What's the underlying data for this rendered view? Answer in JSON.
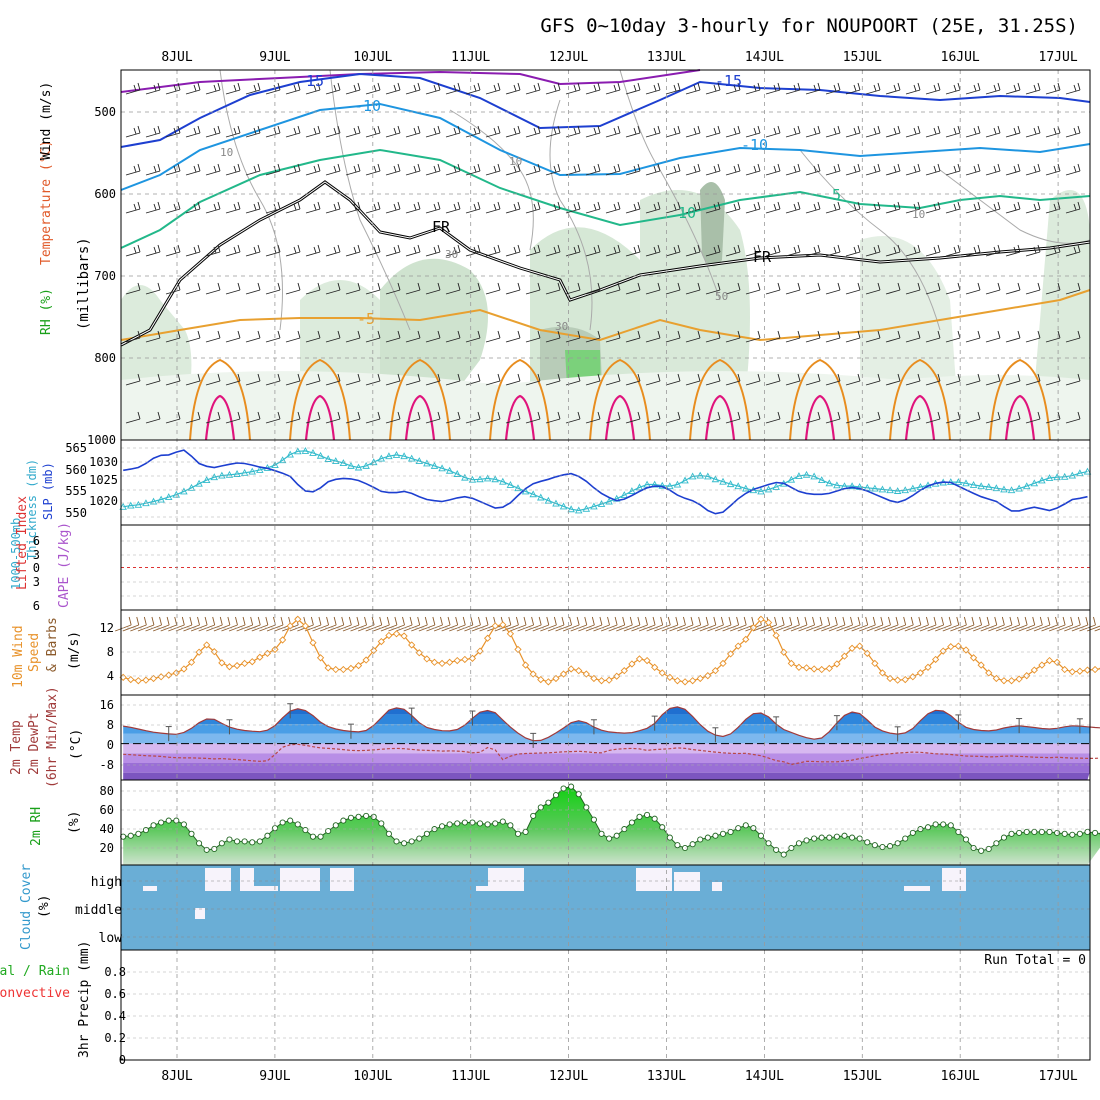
{
  "chart_data": {
    "type": "meteogram",
    "title": "GFS 0~10day 3-hourly for NOUPOORT (25E, 31.25S)",
    "days": [
      "8JUL",
      "9JUL",
      "10JUL",
      "11JUL",
      "12JUL",
      "13JUL",
      "14JUL",
      "15JUL",
      "16JUL",
      "17JUL"
    ],
    "time_range_days": [
      -0.55,
      9.3
    ],
    "colors": {
      "rh_fill": "#7bd17b",
      "temp_contour": "#1d3fd0",
      "freezing": "#000000",
      "thickness": "#33bbcc",
      "slp": "#1d3fd0",
      "wind10m": "#e8922a",
      "barb": "#8b5a2b",
      "li": "#dd3333",
      "cape": "#aa55cc",
      "rh2m": "#33bb33",
      "cloud": "#6aaed6",
      "precip_total": "#22aa22",
      "precip_conv": "#ee3333"
    },
    "panels": {
      "upper_air": {
        "ylabel_rh": "RH (%)",
        "ylabel_temp": "Temperature (°C)",
        "ylabel_wind": "Wind (m/s)",
        "ylabel_p": "(millibars)",
        "ylim": [
          450,
          1000
        ],
        "yticks": [
          "500",
          "600",
          "700",
          "800",
          "1000"
        ],
        "contour_labels": [
          "-15",
          "-15",
          "-10",
          "-10",
          "-5",
          "5",
          "10",
          "FR",
          "FR",
          "10",
          "10",
          "10",
          "30",
          "30",
          "50"
        ]
      },
      "thickness_slp": {
        "ylabel1": "1000-500mb",
        "ylabel2": "Thickness (dm)",
        "ylabel3": "SLP (mb)",
        "yticks_left": [
          "565",
          "560",
          "555",
          "550"
        ],
        "yticks_right": [
          "1030",
          "1025",
          "1020"
        ],
        "thickness_dm": [
          550.5,
          550.8,
          551.0,
          551.4,
          551.8,
          552.3,
          552.9,
          553.5,
          554.3,
          555.2,
          556.2,
          557.1,
          557.8,
          558.2,
          558.4,
          558.6,
          558.9,
          559.2,
          559.6,
          560.1,
          560.8,
          562.0,
          563.4,
          564.2,
          564.3,
          563.8,
          563.1,
          562.3,
          561.8,
          561.3,
          560.6,
          560.2,
          560.6,
          561.5,
          562.4,
          563.0,
          563.3,
          563.0,
          562.4,
          561.8,
          561.2,
          560.6,
          560.0,
          559.4,
          558.6,
          557.7,
          557.2,
          557.3,
          557.5,
          557.3,
          556.7,
          555.9,
          555.1,
          554.3,
          553.6,
          552.8,
          552.0,
          551.3,
          550.6,
          549.9,
          549.6,
          550.0,
          550.6,
          551.2,
          551.8,
          552.5,
          553.4,
          554.4,
          555.3,
          556.0,
          556.0,
          555.7,
          555.6,
          556.0,
          557.0,
          558.0,
          558.2,
          558.0,
          557.3,
          556.7,
          556.1,
          555.6,
          555.0,
          554.6,
          554.3,
          554.8,
          555.4,
          556.2,
          557.2,
          558.1,
          558.4,
          558.0,
          557.1,
          556.3,
          555.8,
          555.6,
          555.6,
          555.4,
          555.2,
          555.0,
          554.8,
          554.6,
          554.4,
          554.6,
          555.0,
          555.4,
          555.8,
          556.2,
          556.5,
          556.6,
          556.6,
          556.3,
          555.9,
          555.6,
          555.4,
          555.1,
          554.8,
          554.6,
          555.0,
          555.6,
          556.3,
          557.0,
          557.6,
          557.8,
          557.9,
          558.2,
          558.8,
          559.2
        ],
        "slp_mb": [
          1028.5,
          1028.8,
          1029.2,
          1030.2,
          1031.5,
          1032.2,
          1032.3,
          1033.0,
          1033.5,
          1032.0,
          1030.2,
          1029.5,
          1029.2,
          1029.6,
          1030.0,
          1030.3,
          1030.2,
          1029.8,
          1029.3,
          1029.0,
          1028.4,
          1027.8,
          1027.0,
          1025.0,
          1023.4,
          1023.2,
          1024.2,
          1025.7,
          1026.3,
          1026.5,
          1026.4,
          1026.0,
          1025.2,
          1024.3,
          1023.3,
          1023.0,
          1023.0,
          1023.3,
          1022.8,
          1022.0,
          1021.3,
          1021.0,
          1020.8,
          1021.2,
          1021.7,
          1022.0,
          1021.6,
          1020.8,
          1020.0,
          1019.2,
          1019.4,
          1020.5,
          1022.3,
          1024.0,
          1025.2,
          1025.8,
          1026.3,
          1026.9,
          1027.4,
          1027.7,
          1027.0,
          1025.8,
          1024.2,
          1022.8,
          1021.8,
          1021.0,
          1021.4,
          1022.3,
          1023.3,
          1024.2,
          1024.6,
          1024.5,
          1023.6,
          1022.4,
          1021.6,
          1021.0,
          1020.0,
          1018.6,
          1017.8,
          1018.2,
          1019.8,
          1021.5,
          1022.8,
          1023.8,
          1024.4,
          1025.0,
          1025.5,
          1025.3,
          1024.3,
          1023.3,
          1022.8,
          1022.6,
          1022.6,
          1022.8,
          1023.4,
          1024.0,
          1024.3,
          1024.0,
          1023.4,
          1022.6,
          1021.8,
          1021.0,
          1020.6,
          1021.2,
          1022.3,
          1023.6,
          1024.6,
          1025.3,
          1025.6,
          1025.5,
          1024.6,
          1023.7,
          1022.8,
          1022.0,
          1021.4,
          1020.8,
          1019.6,
          1018.5,
          1018.5,
          1019.0,
          1019.4,
          1019.0,
          1018.6,
          1019.2,
          1020.2,
          1021.3,
          1021.6,
          1022.0
        ]
      },
      "stability": {
        "ylabel1": "Lifted Index",
        "ylabel2": "CAPE (J/kg)",
        "yticks": [
          "6",
          "3",
          "0",
          "3",
          "6"
        ]
      },
      "wind10m": {
        "ylabel1": "10m Wind",
        "ylabel2": "Speed",
        "ylabel3": "& Barbs",
        "ylabel_units": "(m/s)",
        "yticks": [
          "12",
          "8",
          "4"
        ],
        "speed_ms": [
          2.8,
          2.4,
          2.2,
          2.3,
          2.6,
          2.9,
          3.2,
          3.6,
          4.3,
          5.5,
          7.3,
          8.6,
          7.4,
          5.4,
          4.7,
          4.9,
          5.3,
          5.6,
          6.4,
          7.1,
          7.8,
          9.5,
          12.0,
          13.2,
          12.0,
          9.0,
          6.3,
          4.5,
          4.2,
          4.2,
          4.4,
          4.9,
          5.9,
          7.6,
          9.2,
          10.3,
          10.6,
          10.2,
          8.6,
          7.2,
          6.1,
          5.5,
          5.3,
          5.5,
          5.8,
          6.0,
          6.2,
          7.5,
          9.8,
          12.0,
          12.2,
          10.6,
          7.8,
          5.0,
          3.4,
          2.4,
          2.0,
          2.6,
          3.4,
          4.3,
          4.0,
          3.4,
          2.6,
          2.2,
          2.3,
          3.0,
          4.0,
          5.2,
          6.1,
          5.8,
          4.6,
          3.6,
          2.8,
          2.2,
          2.0,
          2.2,
          2.6,
          3.1,
          4.0,
          5.3,
          7.0,
          8.4,
          9.6,
          11.7,
          13.2,
          12.6,
          10.3,
          7.3,
          5.3,
          4.6,
          4.5,
          4.3,
          4.2,
          4.4,
          5.2,
          6.6,
          8.0,
          8.4,
          7.1,
          5.3,
          3.6,
          2.6,
          2.3,
          2.4,
          2.9,
          3.6,
          4.6,
          6.0,
          7.5,
          8.3,
          8.4,
          7.7,
          6.3,
          5.0,
          3.6,
          2.6,
          2.2,
          2.2,
          2.5,
          3.1,
          4.1,
          5.0,
          5.8,
          5.5,
          4.2,
          3.8,
          3.9,
          4.1,
          4.2,
          4.4,
          4.0,
          3.8,
          4.6,
          5.8
        ]
      },
      "temp2m": {
        "ylabel1": "2m Temp",
        "ylabel2": "2m DewPt",
        "ylabel3": "(6hr Min/Max)",
        "ylabel_units": "(°C)",
        "yticks": [
          "16",
          "8",
          "0",
          "-8"
        ],
        "temp_c": [
          7.2,
          6.7,
          6.0,
          5.3,
          4.7,
          4.3,
          4.0,
          3.8,
          4.6,
          6.3,
          8.6,
          10.1,
          10.0,
          8.3,
          6.8,
          5.9,
          5.4,
          5.1,
          4.9,
          5.5,
          7.4,
          10.6,
          13.4,
          14.3,
          13.6,
          11.5,
          8.8,
          7.0,
          6.0,
          5.4,
          5.0,
          4.8,
          5.4,
          7.5,
          10.6,
          13.8,
          14.7,
          14.1,
          11.6,
          8.6,
          6.6,
          5.8,
          5.3,
          5.2,
          5.8,
          7.6,
          10.4,
          12.9,
          13.6,
          12.7,
          9.7,
          6.8,
          4.3,
          2.3,
          1.2,
          1.3,
          2.6,
          4.4,
          6.4,
          8.6,
          9.4,
          8.6,
          6.8,
          5.5,
          4.8,
          4.5,
          4.3,
          4.5,
          5.3,
          6.3,
          8.3,
          11.9,
          14.5,
          15.1,
          14.1,
          11.2,
          7.8,
          5.1,
          3.5,
          2.9,
          4.0,
          6.7,
          10.0,
          12.3,
          12.6,
          11.0,
          8.0,
          5.8,
          4.6,
          3.4,
          2.4,
          1.8,
          2.3,
          4.9,
          8.5,
          11.6,
          13.0,
          12.4,
          9.7,
          6.8,
          5.2,
          4.3,
          3.9,
          4.4,
          6.2,
          9.4,
          12.3,
          13.7,
          13.4,
          11.5,
          8.8,
          6.7,
          5.8,
          5.4,
          5.2,
          5.6,
          6.4,
          7.0,
          7.3,
          7.0,
          6.6,
          6.2,
          6.0,
          6.3,
          6.9,
          7.3,
          7.2,
          6.9,
          6.6,
          6.4
        ],
        "dewpt_c": [
          -4.4,
          -4.6,
          -4.8,
          -5.0,
          -5.1,
          -5.3,
          -5.6,
          -5.8,
          -5.9,
          -5.9,
          -6.0,
          -6.1,
          -6.3,
          -6.2,
          -6.4,
          -6.6,
          -6.8,
          -7.1,
          -7.3,
          -7.1,
          -4.5,
          -1.5,
          -0.5,
          -0.3,
          -0.7,
          -1.3,
          -1.8,
          -2.0,
          -2.2,
          -2.5,
          -2.8,
          -2.9,
          -2.8,
          -2.6,
          -2.3,
          -2.1,
          -2.0,
          -2.1,
          -2.4,
          -2.7,
          -2.8,
          -2.9,
          -3.1,
          -3.0,
          -3.1,
          -3.3,
          -3.8,
          -3.6,
          -1.6,
          -2.6,
          -6.6,
          -5.2,
          -4.3,
          -4.1,
          -4.0,
          -3.9,
          -3.8,
          -3.6,
          -3.4,
          -3.3,
          -3.2,
          -3.4,
          -3.7,
          -3.8,
          -2.8,
          -2.3,
          -2.1,
          -2.0,
          -2.2,
          -2.8,
          -2.5,
          -2.3,
          -2.1,
          -1.8,
          -2.0,
          -2.5,
          -2.8,
          -3.2,
          -3.5,
          -3.8,
          -4.0,
          -4.1,
          -4.0,
          -4.5,
          -5.0,
          -6.0,
          -7.0,
          -7.5,
          -8.6,
          -8.0,
          -7.3,
          -7.4,
          -7.5,
          -7.5,
          -7.5,
          -7.2,
          -6.8,
          -6.2,
          -5.6,
          -5.0,
          -4.5,
          -4.2,
          -3.9,
          -3.7,
          -3.5,
          -3.6,
          -3.9,
          -4.2,
          -4.3,
          -4.5,
          -4.8,
          -5.1,
          -5.2,
          -5.3,
          -5.5,
          -5.4,
          -5.2,
          -5.1,
          -5.3,
          -5.4,
          -5.6,
          -5.7,
          -5.8,
          -5.6,
          -5.8,
          -6.0,
          -6.0,
          -6.1,
          -6.1,
          -5.9
        ]
      },
      "rh2m": {
        "ylabel1": "2m RH",
        "ylabel_units": "(%)",
        "yticks": [
          "80",
          "60",
          "40",
          "20"
        ],
        "rh_pct": [
          35,
          36,
          38,
          42,
          47,
          50,
          52,
          52,
          48,
          38,
          28,
          21,
          22,
          28,
          32,
          30,
          30,
          29,
          30,
          36,
          44,
          50,
          52,
          48,
          42,
          35,
          35,
          41,
          47,
          52,
          55,
          56,
          57,
          56,
          49,
          38,
          30,
          28,
          30,
          33,
          38,
          43,
          46,
          48,
          49,
          50,
          50,
          49,
          48,
          49,
          51,
          47,
          38,
          40,
          57,
          66,
          71,
          79,
          86,
          88,
          80,
          66,
          53,
          38,
          33,
          36,
          43,
          50,
          56,
          58,
          54,
          45,
          34,
          26,
          23,
          27,
          32,
          34,
          36,
          38,
          40,
          44,
          47,
          44,
          36,
          28,
          21,
          16,
          23,
          28,
          31,
          33,
          34,
          34,
          35,
          36,
          34,
          33,
          29,
          26,
          24,
          25,
          28,
          33,
          39,
          43,
          45,
          48,
          48,
          47,
          40,
          32,
          23,
          20,
          22,
          28,
          34,
          38,
          39,
          40,
          40,
          40,
          40,
          39,
          38,
          37,
          38,
          40,
          39,
          38,
          38
        ]
      },
      "cloud": {
        "ylabel1": "Cloud Cover",
        "ylabel_units": "(%)",
        "levels": [
          "high",
          "middle",
          "low"
        ]
      },
      "precip": {
        "ylabel1": "Total / Rain",
        "ylabel2": "Convective",
        "ylabel3": "3hr Precip (mm)",
        "yticks": [
          "0.8",
          "0.6",
          "0.4",
          "0.2",
          "0"
        ],
        "run_total_label": "Run Total = 0"
      }
    }
  }
}
